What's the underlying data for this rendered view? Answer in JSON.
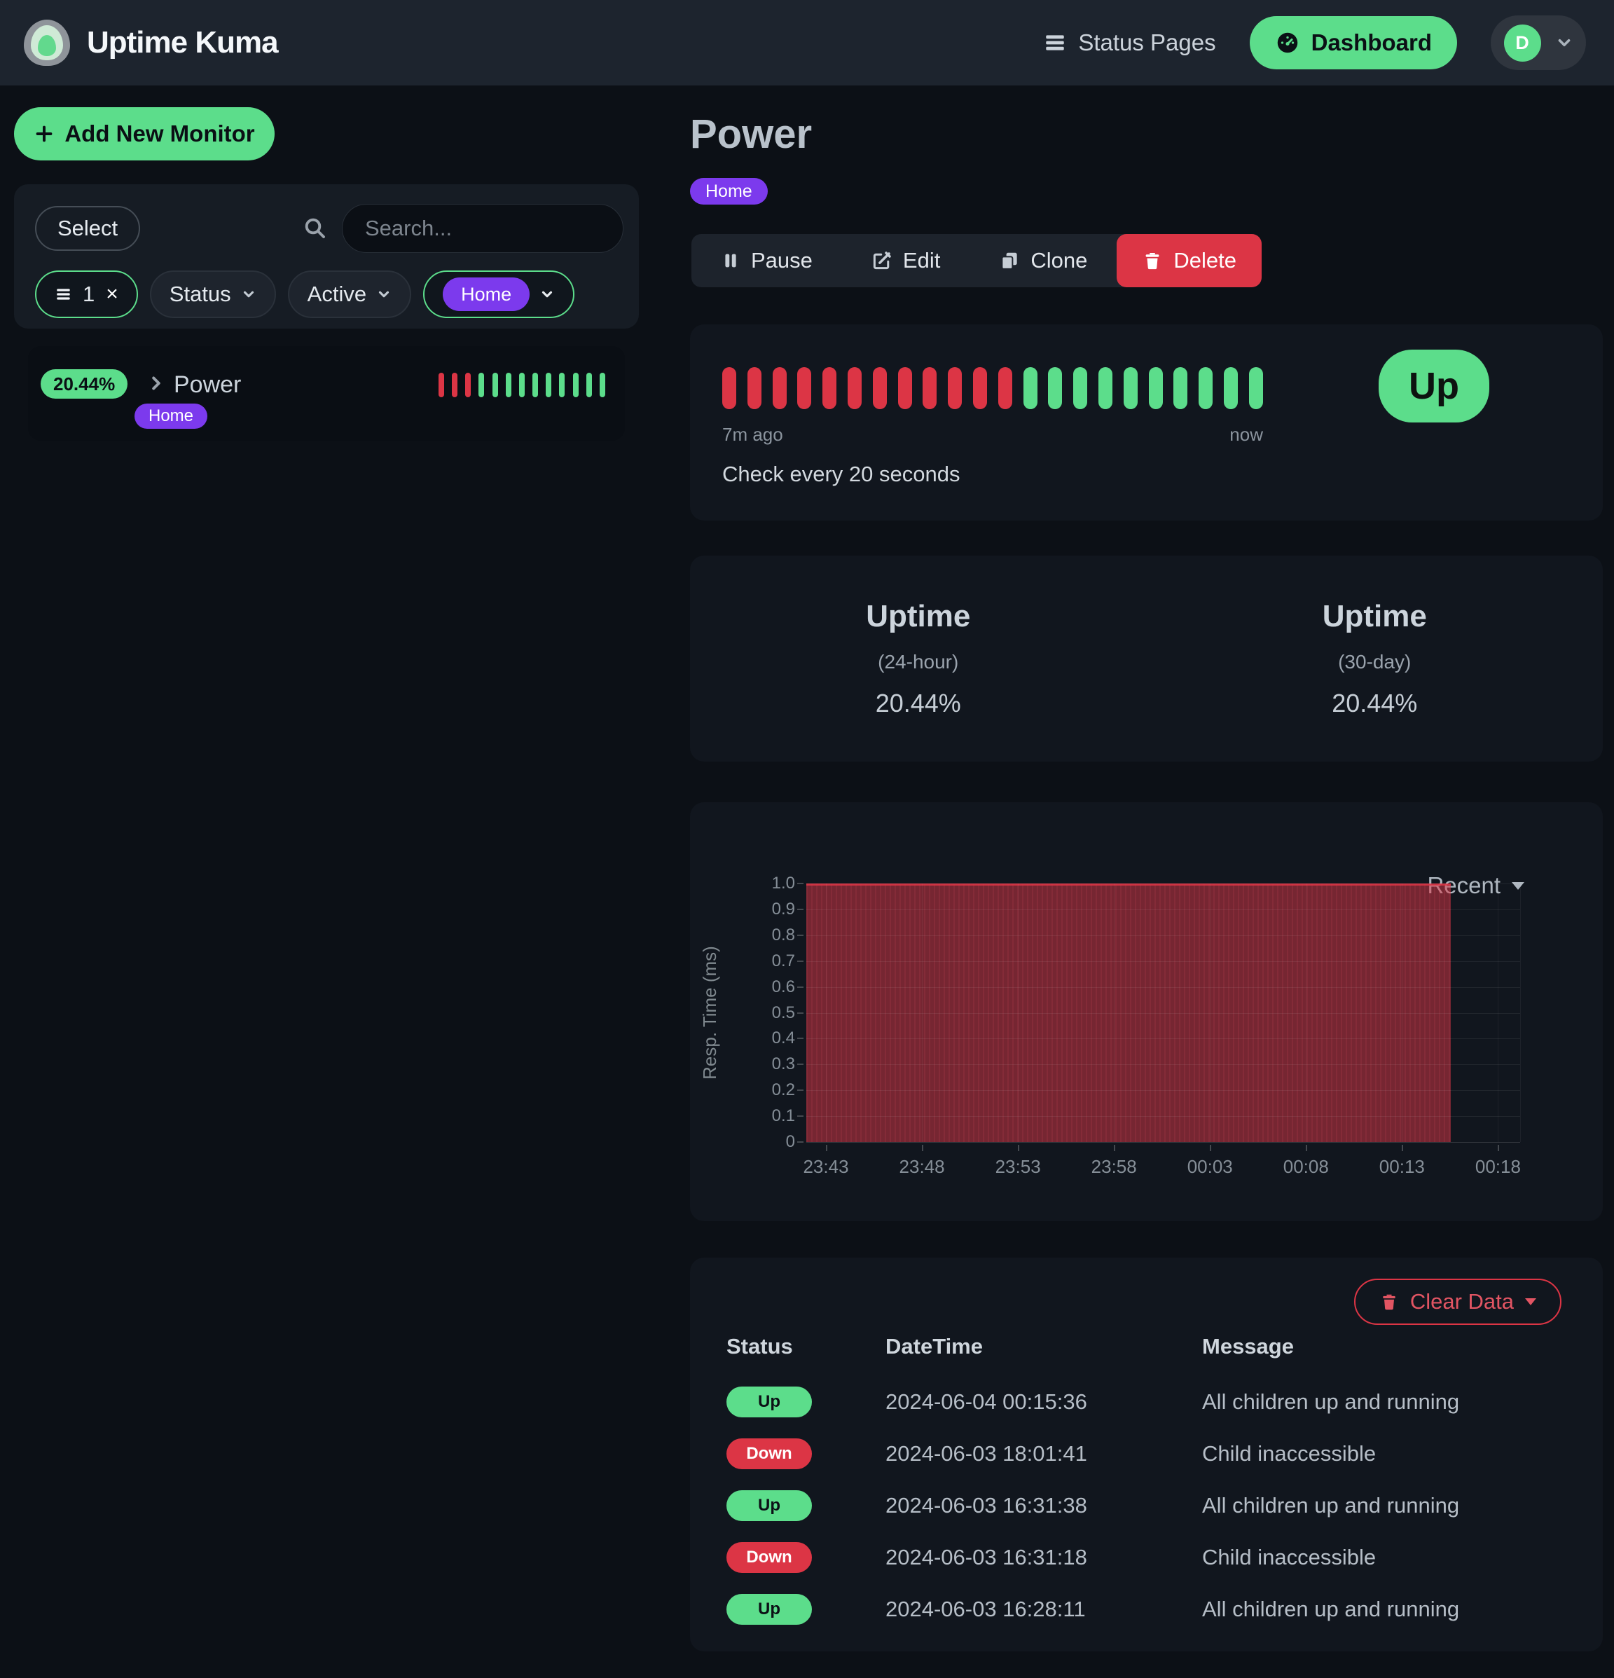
{
  "navbar": {
    "brand": "Uptime Kuma",
    "status_pages_label": "Status Pages",
    "dashboard_label": "Dashboard",
    "avatar_initial": "D"
  },
  "sidebar": {
    "add_button_label": "Add New Monitor",
    "select_button_label": "Select",
    "search_placeholder": "Search...",
    "filters": {
      "active_count": "1",
      "clear_glyph": "×",
      "status_label": "Status",
      "active_label": "Active",
      "tag_label": "Home"
    }
  },
  "monitor": {
    "uptime_badge": "20.44%",
    "name": "Power",
    "tag": "Home",
    "beats": [
      "down",
      "down",
      "down",
      "up",
      "up",
      "up",
      "up",
      "up",
      "up",
      "up",
      "up",
      "up",
      "up"
    ]
  },
  "main": {
    "title": "Power",
    "tag": "Home",
    "actions": {
      "pause": "Pause",
      "edit": "Edit",
      "clone": "Clone",
      "delete": "Delete"
    },
    "heartbeat": {
      "beats": [
        "down",
        "down",
        "down",
        "down",
        "down",
        "down",
        "down",
        "down",
        "down",
        "down",
        "down",
        "down",
        "up",
        "up",
        "up",
        "up",
        "up",
        "up",
        "up",
        "up",
        "up",
        "up"
      ],
      "from_label": "7m ago",
      "to_label": "now",
      "interval_text": "Check every 20 seconds",
      "status_badge": "Up"
    },
    "uptime_cards": [
      {
        "title": "Uptime",
        "period": "(24-hour)",
        "value": "20.44%"
      },
      {
        "title": "Uptime",
        "period": "(30-day)",
        "value": "20.44%"
      }
    ],
    "events": {
      "clear_button_label": "Clear Data",
      "headers": [
        "Status",
        "DateTime",
        "Message"
      ],
      "rows": [
        {
          "status": "Up",
          "datetime": "2024-06-04 00:15:36",
          "message": "All children up and running"
        },
        {
          "status": "Down",
          "datetime": "2024-06-03 18:01:41",
          "message": "Child inaccessible"
        },
        {
          "status": "Up",
          "datetime": "2024-06-03 16:31:38",
          "message": "All children up and running"
        },
        {
          "status": "Down",
          "datetime": "2024-06-03 16:31:18",
          "message": "Child inaccessible"
        },
        {
          "status": "Up",
          "datetime": "2024-06-03 16:28:11",
          "message": "All children up and running"
        }
      ]
    }
  },
  "chart_data": {
    "type": "area",
    "title": "Response Time chart of monitor Power",
    "range_selector": "Recent",
    "ylabel": "Resp. Time (ms)",
    "xlabel": "",
    "ylim": [
      0,
      1.0
    ],
    "y_ticks": [
      "1.0",
      "0.9",
      "0.8",
      "0.7",
      "0.6",
      "0.5",
      "0.4",
      "0.3",
      "0.2",
      "0.1",
      "0"
    ],
    "x_ticks": [
      "23:43",
      "23:48",
      "23:53",
      "23:58",
      "00:03",
      "00:08",
      "00:13",
      "00:18"
    ],
    "series": [
      {
        "name": "Resp. Time (ms)",
        "value_ms": 1.0,
        "start": "23:41",
        "end": "00:15:36",
        "note": "flat 1.0 ms during down period, no data after monitor came up"
      }
    ],
    "area_color": "#dc3545",
    "grid": true,
    "legend_position": "none",
    "layout": {
      "x_tick_start_pct": 2.75,
      "x_tick_step_pct": 13.45,
      "area_right_pct": 90.3
    }
  },
  "colors": {
    "green": "#5cdd8b",
    "red": "#dc3545",
    "purple": "#7c3aed"
  }
}
